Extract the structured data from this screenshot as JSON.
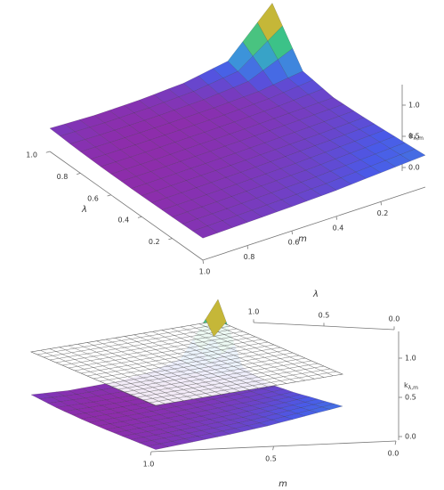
{
  "chart_data": [
    {
      "type": "surface",
      "xlabel": "m",
      "ylabel": "λ",
      "zlabel": "k",
      "zlabel_subscript": "λ,m",
      "x": [
        0,
        0.2,
        0.4,
        0.6,
        0.8,
        1.0
      ],
      "y": [
        0,
        0.2,
        0.4,
        0.6,
        0.8,
        1.0
      ],
      "z": [
        [
          0.55,
          0.5,
          0.45,
          0.42,
          0.4,
          0.38
        ],
        [
          0.5,
          0.46,
          0.42,
          0.4,
          0.38,
          0.37
        ],
        [
          0.45,
          0.42,
          0.4,
          0.38,
          0.37,
          0.36
        ],
        [
          0.42,
          0.4,
          0.38,
          0.37,
          0.36,
          0.36
        ],
        [
          0.5,
          0.4,
          0.37,
          0.36,
          0.36,
          0.37
        ],
        [
          1.3,
          0.55,
          0.42,
          0.38,
          0.37,
          0.4
        ]
      ],
      "xlim": [
        0,
        1
      ],
      "ylim": [
        0,
        1
      ],
      "zlim": [
        0,
        1.3
      ],
      "xticks": [
        {
          "value": 1,
          "label": "1.0"
        },
        0.8,
        0.6,
        0.4,
        0.2
      ],
      "yticks": [
        {
          "value": 1,
          "label": "1.0"
        },
        0.8,
        0.6,
        0.4,
        0.2
      ],
      "zticks": [
        {
          "value": 0,
          "label": "0.0"
        },
        0.5,
        {
          "value": 1,
          "label": "1.0"
        }
      ],
      "colors": [
        "#7a1a8a",
        "#8a1fa0",
        "#a0209a",
        "#4a5ae8",
        "#3a9ad8",
        "#30c090",
        "#a8d040",
        "#e0a030",
        "#d83020"
      ],
      "mesh_color": "#222222"
    },
    {
      "type": "surface",
      "xlabel": "m",
      "ylabel": "λ",
      "zlabel": "k",
      "zlabel_subscript": "λ,m",
      "x": [
        0,
        0.2,
        0.4,
        0.6,
        0.8,
        1.0
      ],
      "y": [
        0,
        0.2,
        0.4,
        0.6,
        0.8,
        1.0
      ],
      "z": [
        [
          0.55,
          0.5,
          0.45,
          0.42,
          0.4,
          0.38
        ],
        [
          0.5,
          0.46,
          0.42,
          0.4,
          0.38,
          0.37
        ],
        [
          0.45,
          0.42,
          0.4,
          0.38,
          0.37,
          0.36
        ],
        [
          0.42,
          0.4,
          0.38,
          0.37,
          0.36,
          0.36
        ],
        [
          0.5,
          0.4,
          0.37,
          0.36,
          0.36,
          0.37
        ],
        [
          1.3,
          0.55,
          0.42,
          0.38,
          0.37,
          0.4
        ]
      ],
      "xlim": [
        0,
        1
      ],
      "ylim": [
        0,
        1
      ],
      "zlim": [
        0,
        1.3
      ],
      "xticks": [
        {
          "value": 1,
          "label": "1.0"
        },
        0.5,
        {
          "value": 0,
          "label": "0.0"
        }
      ],
      "yticks": [
        {
          "value": 1,
          "label": "1.0"
        },
        0.5,
        {
          "value": 0,
          "label": "0.0"
        }
      ],
      "zticks": [
        {
          "value": 0,
          "label": "0.0"
        },
        0.5,
        {
          "value": 1,
          "label": "1.0"
        }
      ],
      "colors": [
        "#7a1a8a",
        "#8a1fa0",
        "#a0209a",
        "#4a5ae8",
        "#3a9ad8",
        "#30c090",
        "#a8d040",
        "#e0a030",
        "#d83020"
      ],
      "mesh_color": "#222222",
      "plane": {
        "z": 1,
        "color": "#ffffff"
      }
    }
  ]
}
